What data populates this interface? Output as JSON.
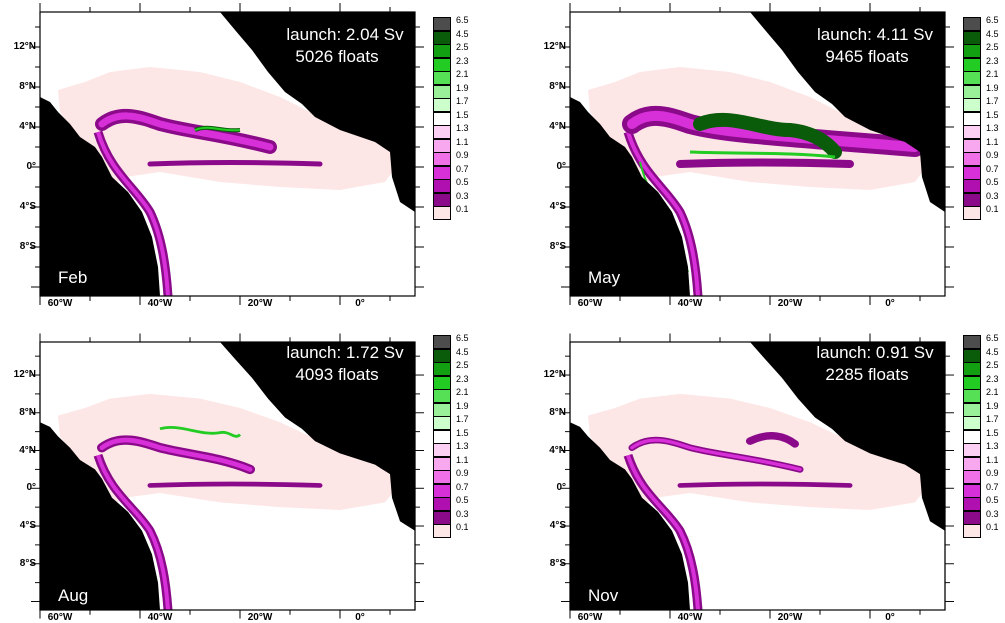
{
  "axes": {
    "x_labels": [
      "60°W",
      "40°W",
      "20°W",
      "0°"
    ],
    "y_labels": [
      "12°N",
      "8°N",
      "4°N",
      "0°",
      "4°S",
      "8°S"
    ]
  },
  "colorbar": {
    "levels": [
      "6.5",
      "4.5",
      "2.5",
      "2.3",
      "2.1",
      "1.9",
      "1.7",
      "1.5",
      "1.3",
      "1.1",
      "0.9",
      "0.7",
      "0.5",
      "0.3",
      "0.1"
    ],
    "colors": [
      "#4d4d4d",
      "#0a5c0a",
      "#12a012",
      "#22cc22",
      "#55e055",
      "#99f099",
      "#ccffcc",
      "#ffffff",
      "#fccff5",
      "#f8a8ee",
      "#f070e8",
      "#d830d8",
      "#b010b0",
      "#8a0a8a",
      "#fde6e6"
    ]
  },
  "colors": {
    "land": "#000000",
    "ocean": "#ffffff",
    "low_density": "#fde6e6",
    "mid_density": "#d830d8",
    "high_density": "#8a0a8a",
    "peak_green": "#22cc22",
    "peak_dark": "#0a5c0a",
    "annotation": "#ffffff"
  },
  "panels": [
    {
      "month": "Feb",
      "launch": "launch: 2.04 Sv",
      "floats": "5026 floats"
    },
    {
      "month": "May",
      "launch": "launch: 4.11 Sv",
      "floats": "9465 floats"
    },
    {
      "month": "Aug",
      "launch": "launch: 1.72 Sv",
      "floats": "4093 floats"
    },
    {
      "month": "Nov",
      "launch": "launch: 0.91 Sv",
      "floats": "2285 floats"
    }
  ]
}
